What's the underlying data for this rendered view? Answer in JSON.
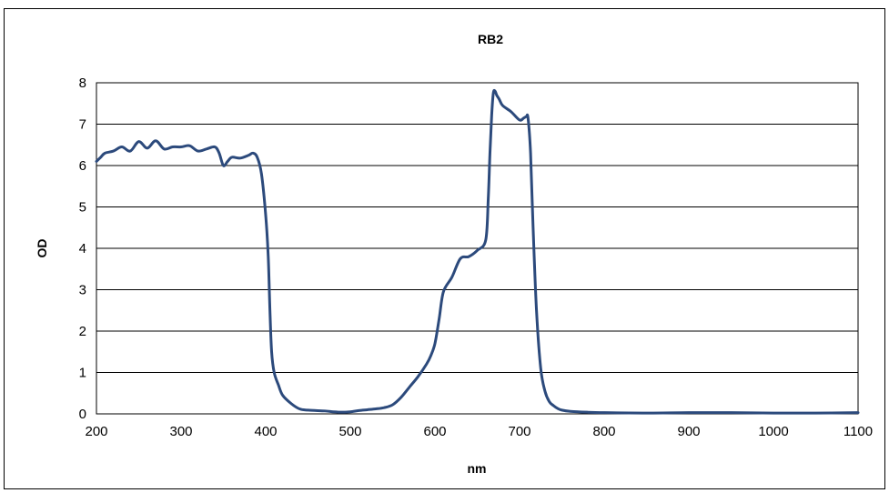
{
  "chart_data": {
    "type": "line",
    "title": "RB2",
    "xlabel": "nm",
    "ylabel": "OD",
    "xlim": [
      200,
      1100
    ],
    "ylim": [
      0,
      8
    ],
    "xticks": [
      200,
      300,
      400,
      500,
      600,
      700,
      800,
      900,
      1000,
      1100
    ],
    "yticks": [
      0,
      1,
      2,
      3,
      4,
      5,
      6,
      7,
      8
    ],
    "grid": "horizontal",
    "legend": "none",
    "line_color": "#2c4a7c",
    "series": [
      {
        "x": [
          200,
          205,
          210,
          220,
          230,
          240,
          250,
          260,
          270,
          280,
          290,
          300,
          310,
          320,
          330,
          340,
          345,
          350,
          355,
          360,
          370,
          380,
          385,
          390,
          395,
          400,
          403,
          405,
          407,
          410,
          415,
          420,
          430,
          440,
          450,
          470,
          480,
          490,
          500,
          510,
          520,
          530,
          540,
          550,
          560,
          570,
          580,
          590,
          595,
          600,
          605,
          610,
          620,
          630,
          640,
          650,
          660,
          663,
          665,
          667,
          669,
          671,
          673,
          676,
          680,
          690,
          700,
          705,
          708,
          710,
          713,
          716,
          720,
          725,
          730,
          735,
          740,
          745,
          750,
          760,
          780,
          800,
          850,
          900,
          950,
          1000,
          1050,
          1100
        ],
        "y": [
          6.1,
          6.2,
          6.3,
          6.35,
          6.45,
          6.35,
          6.58,
          6.42,
          6.6,
          6.4,
          6.45,
          6.45,
          6.48,
          6.35,
          6.4,
          6.45,
          6.3,
          6.0,
          6.1,
          6.2,
          6.18,
          6.25,
          6.3,
          6.2,
          5.8,
          4.8,
          3.8,
          2.5,
          1.5,
          1.0,
          0.7,
          0.45,
          0.25,
          0.12,
          0.09,
          0.07,
          0.05,
          0.04,
          0.05,
          0.08,
          0.1,
          0.12,
          0.15,
          0.22,
          0.4,
          0.65,
          0.9,
          1.2,
          1.4,
          1.7,
          2.3,
          2.95,
          3.3,
          3.75,
          3.8,
          3.95,
          4.2,
          5.2,
          6.3,
          7.2,
          7.75,
          7.8,
          7.7,
          7.6,
          7.45,
          7.3,
          7.1,
          7.15,
          7.18,
          7.15,
          6.3,
          4.5,
          2.5,
          1.1,
          0.55,
          0.3,
          0.2,
          0.13,
          0.09,
          0.06,
          0.04,
          0.03,
          0.02,
          0.03,
          0.03,
          0.02,
          0.02,
          0.03
        ]
      }
    ]
  }
}
